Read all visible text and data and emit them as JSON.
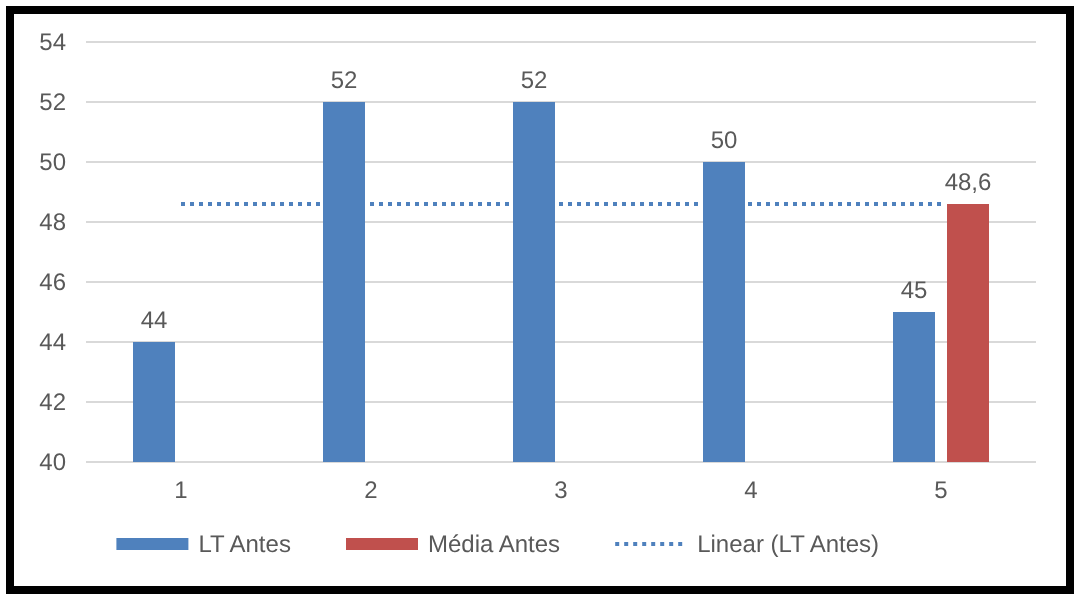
{
  "chart_data": {
    "type": "bar",
    "categories": [
      "1",
      "2",
      "3",
      "4",
      "5"
    ],
    "series": [
      {
        "name": "LT Antes",
        "color": "#4f81bd",
        "values": [
          44,
          52,
          52,
          50,
          45
        ],
        "value_labels": [
          "44",
          "52",
          "52",
          "50",
          "45"
        ]
      },
      {
        "name": "Média Antes",
        "color": "#c0504d",
        "values": [
          null,
          null,
          null,
          null,
          48.6
        ],
        "value_labels": [
          null,
          null,
          null,
          null,
          "48,6"
        ]
      },
      {
        "name": "Linear (LT Antes)",
        "type": "line",
        "color": "#4f81bd",
        "x": [
          "1",
          "5"
        ],
        "values": [
          48.6,
          48.6
        ],
        "line_style": "dotted",
        "marker": "none"
      }
    ],
    "ylim": [
      40,
      54
    ],
    "yticks": [
      40,
      42,
      44,
      46,
      48,
      50,
      52,
      54
    ],
    "grid": "y",
    "legend": "bottom"
  }
}
